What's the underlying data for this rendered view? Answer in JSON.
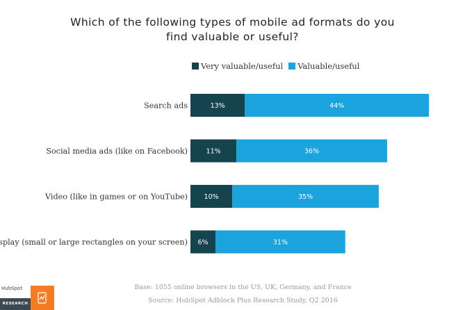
{
  "title_lines": [
    "Which of the following types of mobile ad formats do you",
    "find valuable or useful?"
  ],
  "colors": {
    "very": "#15444f",
    "valuable": "#1aa3dc"
  },
  "chart_data": {
    "type": "bar",
    "orientation": "horizontal",
    "stacked": true,
    "categories": [
      "Search ads",
      "Social media ads (like on Facebook)",
      "Video (like in games or on YouTube)",
      "Display (small or large rectangles on your screen)"
    ],
    "series": [
      {
        "name": "Very valuable/useful",
        "values": [
          13,
          11,
          10,
          6
        ],
        "labels": [
          "13%",
          "11%",
          "10%",
          "6%"
        ]
      },
      {
        "name": "Valuable/useful",
        "values": [
          44,
          36,
          35,
          31
        ],
        "labels": [
          "44%",
          "36%",
          "35%",
          "31%"
        ]
      }
    ],
    "legend": "top",
    "grid": false
  },
  "footnotes": {
    "base": "Base: 1055 online browsers in the US, UK, Germany, and France",
    "source": "Source: HubSpot Adblock Plus Research Study, Q2 2016"
  },
  "logo": {
    "brand": "HubSpot",
    "label": "RESEARCH"
  }
}
